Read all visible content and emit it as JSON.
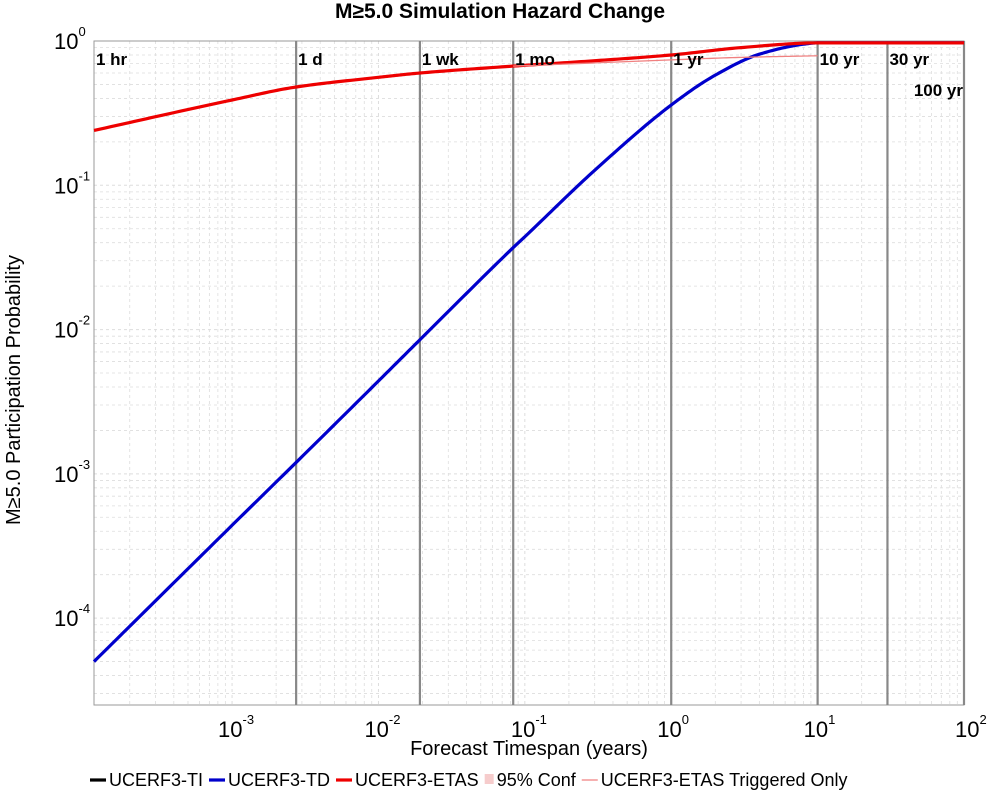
{
  "chart_data": {
    "type": "line",
    "title": "M≥5.0 Simulation Hazard Change",
    "xlabel": "Forecast Timespan (years)",
    "ylabel": "M≥5.0 Participation Probability",
    "xscale": "log",
    "yscale": "log",
    "xlim": [
      0.000114,
      100
    ],
    "ylim": [
      2.5e-05,
      1
    ],
    "grid": true,
    "legend_position": "bottom",
    "x_ticks": [
      {
        "base": "10",
        "exp": "-3",
        "value": 0.001
      },
      {
        "base": "10",
        "exp": "-2",
        "value": 0.01
      },
      {
        "base": "10",
        "exp": "-1",
        "value": 0.1
      },
      {
        "base": "10",
        "exp": "0",
        "value": 1
      },
      {
        "base": "10",
        "exp": "1",
        "value": 10
      },
      {
        "base": "10",
        "exp": "2",
        "value": 100
      }
    ],
    "y_ticks": [
      {
        "base": "10",
        "exp": "0",
        "value": 1
      },
      {
        "base": "10",
        "exp": "-1",
        "value": 0.1
      },
      {
        "base": "10",
        "exp": "-2",
        "value": 0.01
      },
      {
        "base": "10",
        "exp": "-3",
        "value": 0.001
      },
      {
        "base": "10",
        "exp": "-4",
        "value": 0.0001
      }
    ],
    "time_markers": [
      {
        "label": "1 hr",
        "x": 0.000114,
        "draw_line": false,
        "label_row": 0
      },
      {
        "label": "1 d",
        "x": 0.00274,
        "draw_line": true,
        "label_row": 0
      },
      {
        "label": "1 wk",
        "x": 0.0192,
        "draw_line": true,
        "label_row": 0
      },
      {
        "label": "1 mo",
        "x": 0.0833,
        "draw_line": true,
        "label_row": 0
      },
      {
        "label": "1 yr",
        "x": 1,
        "draw_line": true,
        "label_row": 0
      },
      {
        "label": "10 yr",
        "x": 10,
        "draw_line": true,
        "label_row": 0
      },
      {
        "label": "30 yr",
        "x": 30,
        "draw_line": true,
        "label_row": 0
      },
      {
        "label": "100 yr",
        "x": 100,
        "draw_line": true,
        "label_row": 1
      }
    ],
    "series": [
      {
        "name": "UCERF3-TI",
        "color": "#000000",
        "style": "thick",
        "x": [],
        "y": []
      },
      {
        "name": "UCERF3-TD",
        "color": "#0000cc",
        "style": "thick",
        "x": [
          0.000114,
          0.001,
          0.00274,
          0.01,
          0.0192,
          0.0833,
          0.1,
          0.3,
          1,
          2,
          4,
          8,
          10,
          30,
          100
        ],
        "y": [
          5e-05,
          0.00044,
          0.0012,
          0.0044,
          0.0085,
          0.037,
          0.044,
          0.127,
          0.36,
          0.58,
          0.81,
          0.95,
          0.97,
          0.97,
          0.97
        ]
      },
      {
        "name": "UCERF3-ETAS",
        "color": "#ee0000",
        "style": "thick",
        "x": [
          0.000114,
          0.001,
          0.00274,
          0.01,
          0.0192,
          0.0833,
          0.3,
          1,
          3,
          10,
          30,
          100
        ],
        "y": [
          0.24,
          0.39,
          0.48,
          0.56,
          0.6,
          0.67,
          0.73,
          0.8,
          0.9,
          0.97,
          0.97,
          0.97
        ]
      },
      {
        "name": "95% Conf",
        "color": "#f6cccc",
        "style": "band",
        "x": [],
        "y": []
      },
      {
        "name": "UCERF3-ETAS Triggered Only",
        "color": "#f08080",
        "style": "thin",
        "x": [
          0.0833,
          0.3,
          1,
          3,
          10
        ],
        "y": [
          0.67,
          0.705,
          0.74,
          0.77,
          0.79
        ]
      }
    ]
  }
}
